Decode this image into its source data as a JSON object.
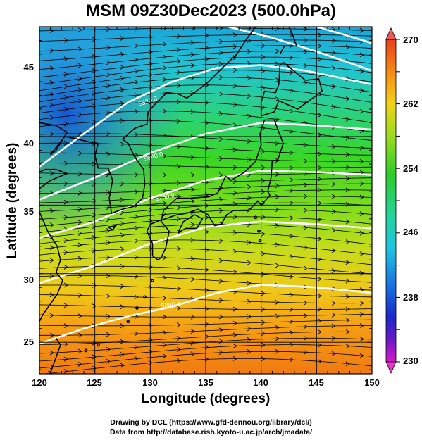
{
  "title": "MSM 09Z30Dec2023 (500.0hPa)",
  "xlabel": "Longitude (degrees)",
  "ylabel": "Latitude  (degrees)",
  "x_ticks": [
    "120",
    "125",
    "130",
    "135",
    "140",
    "145",
    "150"
  ],
  "y_ticks": [
    "45",
    "40",
    "35",
    "30",
    "25"
  ],
  "colorbar": {
    "ticks": [
      "270",
      "262",
      "254",
      "246",
      "238",
      "230"
    ],
    "min": 230,
    "max": 270,
    "units": ""
  },
  "contour_labels": [
    "5520.0",
    "5640.0",
    "5760.0",
    "5880.0"
  ],
  "credit_line1": "Drawing by DCL (https://www.gfd-dennou.org/library/dcl/)",
  "credit_line2": "Data from http://database.rish.kyoto-u.ac.jp/arch/jmadata/",
  "map_extent": {
    "lon": [
      120,
      150
    ],
    "lat": [
      22.7,
      48
    ]
  }
}
